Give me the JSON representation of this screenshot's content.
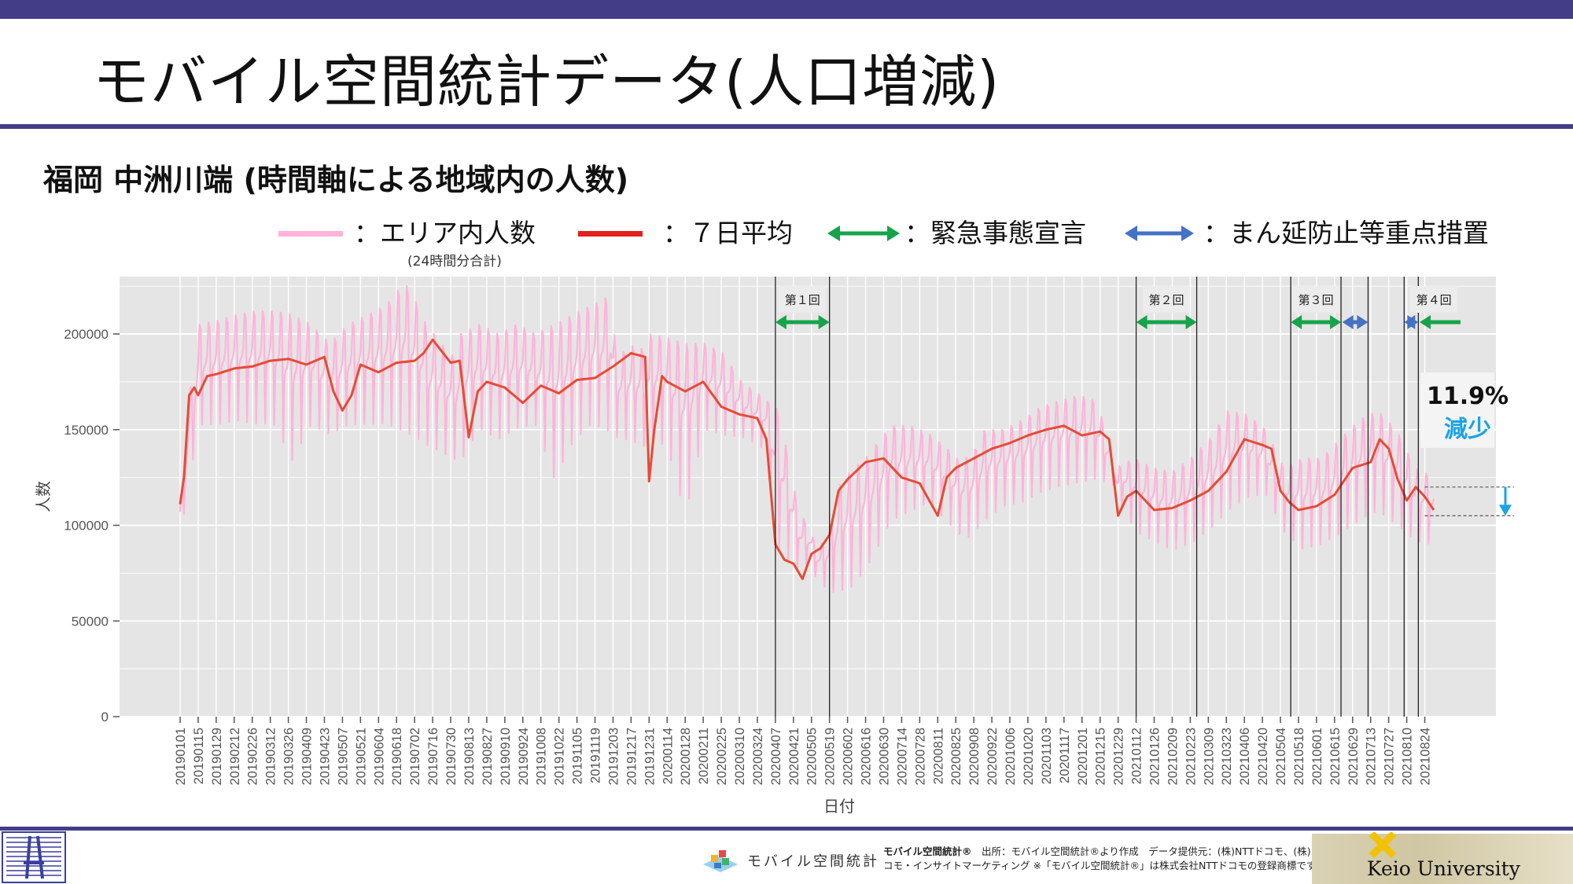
{
  "slide": {
    "title": "モバイル空間統計データ(人口増減)",
    "subtitle": "福岡 中洲川端 (時間軸による地域内の人数)"
  },
  "legend": {
    "area_label": "：エリア内人数",
    "area_sub": "(24時間分合計)",
    "avg_label": "：７日平均",
    "emergency_label": "：緊急事態宣言",
    "priority_label": "：まん延防止等重点措置",
    "area_color": "#ffb3d9",
    "avg_color": "#e3211c",
    "emergency_color": "#17a34a",
    "priority_color": "#4472c4"
  },
  "annotations": {
    "waves": [
      "第１回",
      "第２回",
      "第３回",
      "第４回"
    ],
    "change_pct": "11.9%",
    "change_word": "減少",
    "change_color": "#1aa3e8"
  },
  "footer": {
    "brand": "モバイル空間統計",
    "source_line1_bold": "モバイル空間統計®",
    "source_line1": "　出所：モバイル空間統計®より作成　データ提供元：(株)NTTドコモ、(株)ド",
    "source_line2": "コモ・インサイトマーケティング ※「モバイル空間統計®」は株式会社NTTドコモの登録商標です。",
    "university": "Keio University"
  },
  "chart_data": {
    "type": "line",
    "xlabel": "日付",
    "ylabel": "人数",
    "ylim": [
      0,
      230000
    ],
    "yticks": [
      0,
      50000,
      100000,
      150000,
      200000
    ],
    "ytick_labels": [
      "0",
      "50000",
      "100000",
      "150000",
      "200000"
    ],
    "grid": true,
    "xticks": [
      "20190101",
      "20190115",
      "20190129",
      "20190212",
      "20190226",
      "20190312",
      "20190326",
      "20190409",
      "20190423",
      "20190507",
      "20190521",
      "20190604",
      "20190618",
      "20190702",
      "20190716",
      "20190730",
      "20190813",
      "20190827",
      "20190910",
      "20190924",
      "20191008",
      "20191022",
      "20191105",
      "20191119",
      "20191203",
      "20191217",
      "20191231",
      "20200114",
      "20200128",
      "20200211",
      "20200225",
      "20200310",
      "20200324",
      "20200407",
      "20200421",
      "20200505",
      "20200519",
      "20200602",
      "20200616",
      "20200630",
      "20200714",
      "20200728",
      "20200811",
      "20200825",
      "20200908",
      "20200922",
      "20201006",
      "20201020",
      "20201103",
      "20201117",
      "20201201",
      "20201215",
      "20201229",
      "20210112",
      "20210126",
      "20210209",
      "20210223",
      "20210309",
      "20210323",
      "20210406",
      "20210420",
      "20210504",
      "20210518",
      "20210601",
      "20210615",
      "20210629",
      "20210713",
      "20210727",
      "20210810",
      "20210824"
    ],
    "series": [
      {
        "name": "７日平均",
        "x": [
          "20190101",
          "20190104",
          "20190108",
          "20190112",
          "20190115",
          "20190122",
          "20190129",
          "20190212",
          "20190226",
          "20190312",
          "20190326",
          "20190409",
          "20190423",
          "20190430",
          "20190507",
          "20190514",
          "20190521",
          "20190604",
          "20190618",
          "20190702",
          "20190709",
          "20190716",
          "20190730",
          "20190806",
          "20190813",
          "20190820",
          "20190827",
          "20190910",
          "20190924",
          "20191008",
          "20191022",
          "20191105",
          "20191119",
          "20191203",
          "20191217",
          "20191228",
          "20191231",
          "20200104",
          "20200110",
          "20200114",
          "20200128",
          "20200211",
          "20200225",
          "20200310",
          "20200324",
          "20200331",
          "20200407",
          "20200414",
          "20200421",
          "20200428",
          "20200505",
          "20200512",
          "20200519",
          "20200526",
          "20200602",
          "20200616",
          "20200630",
          "20200714",
          "20200728",
          "20200811",
          "20200818",
          "20200825",
          "20200908",
          "20200922",
          "20201006",
          "20201020",
          "20201103",
          "20201117",
          "20201201",
          "20201215",
          "20201222",
          "20201229",
          "20210105",
          "20210112",
          "20210126",
          "20210209",
          "20210223",
          "20210309",
          "20210323",
          "20210406",
          "20210420",
          "20210427",
          "20210504",
          "20210511",
          "20210518",
          "20210601",
          "20210615",
          "20210629",
          "20210713",
          "20210720",
          "20210727",
          "20210803",
          "20210810",
          "20210817",
          "20210824",
          "20210831"
        ],
        "y": [
          111000,
          125000,
          168000,
          172000,
          168000,
          178000,
          179000,
          182000,
          183000,
          186000,
          187000,
          184000,
          188000,
          170000,
          160000,
          168000,
          184000,
          180000,
          185000,
          186000,
          190000,
          197000,
          185000,
          186000,
          146000,
          170000,
          175000,
          172000,
          164000,
          173000,
          169000,
          176000,
          177000,
          183000,
          190000,
          188000,
          123000,
          150000,
          178000,
          175000,
          170000,
          175000,
          162000,
          158000,
          156000,
          145000,
          90000,
          82000,
          80000,
          72000,
          85000,
          88000,
          95000,
          118000,
          124000,
          133000,
          135000,
          125000,
          122000,
          105000,
          125000,
          130000,
          135000,
          140000,
          143000,
          147000,
          150000,
          152000,
          147000,
          149000,
          145000,
          105000,
          115000,
          118000,
          108000,
          109000,
          113000,
          118000,
          128000,
          145000,
          142000,
          140000,
          118000,
          112000,
          108000,
          110000,
          116000,
          130000,
          133000,
          145000,
          140000,
          124000,
          113000,
          120000,
          115000,
          108000
        ]
      },
      {
        "name": "エリア内人数",
        "type": "daily",
        "weekly_range_low": [
          93000,
          150000,
          150000,
          152000,
          150000,
          150000,
          130000,
          150000,
          145000,
          150000,
          150000,
          150000,
          145000,
          140000,
          135000,
          130000,
          148000,
          142000,
          148000,
          150000,
          120000,
          140000,
          150000,
          145000,
          142000,
          138000,
          140000,
          100000,
          148000,
          145000,
          145000,
          140000,
          130000,
          115000,
          70000,
          62000,
          65000,
          80000,
          100000,
          105000,
          110000,
          100000,
          90000,
          100000,
          108000,
          110000,
          115000,
          118000,
          120000,
          122000,
          120000,
          95000,
          90000,
          85000,
          88000,
          95000,
          105000,
          112000,
          115000,
          95000,
          85000,
          88000,
          93000,
          100000,
          105000,
          98000,
          90000,
          88000
        ],
        "weekly_range_high": [
          98000,
          205000,
          207000,
          210000,
          212000,
          212000,
          210000,
          205000,
          195000,
          205000,
          210000,
          215000,
          227000,
          210000,
          165000,
          200000,
          205000,
          200000,
          205000,
          200000,
          205000,
          210000,
          215000,
          220000,
          120000,
          200000,
          198000,
          195000,
          195000,
          190000,
          175000,
          168000,
          160000,
          110000,
          90000,
          85000,
          95000,
          140000,
          152000,
          152000,
          148000,
          140000,
          130000,
          150000,
          150000,
          155000,
          162000,
          165000,
          168000,
          165000,
          130000,
          135000,
          130000,
          128000,
          135000,
          145000,
          160000,
          158000,
          150000,
          130000,
          135000,
          135000,
          145000,
          155000,
          160000,
          150000,
          130000,
          125000
        ]
      }
    ],
    "event_bands": [
      {
        "kind": "緊急事態宣言",
        "label": "第１回",
        "start": "20200407",
        "end": "20200519"
      },
      {
        "kind": "緊急事態宣言",
        "label": "第２回",
        "start": "20210112",
        "end": "20210228"
      },
      {
        "kind": "緊急事態宣言",
        "label": "第３回",
        "start": "20210512",
        "end": "20210620"
      },
      {
        "kind": "まん延防止等重点措置",
        "label": "",
        "start": "20210621",
        "end": "20210711"
      },
      {
        "kind": "まん延防止等重点措置",
        "label": "",
        "start": "20210808",
        "end": "20210819"
      },
      {
        "kind": "緊急事態宣言",
        "label": "第４回",
        "start": "20210820",
        "end": "20210831"
      }
    ]
  }
}
